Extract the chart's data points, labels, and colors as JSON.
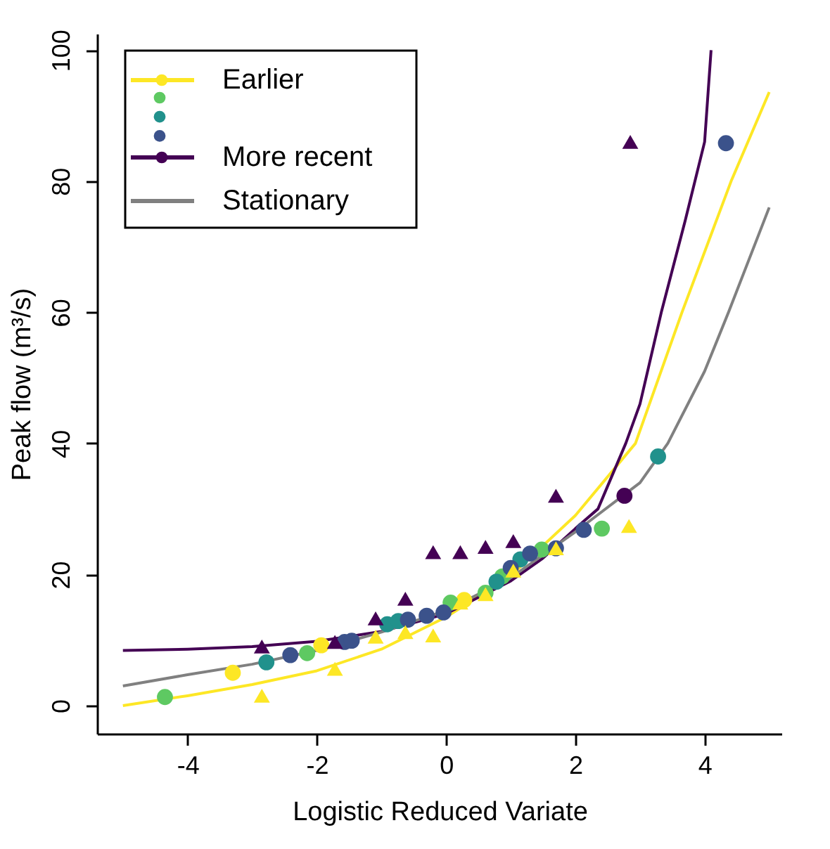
{
  "chart_data": {
    "type": "scatter",
    "xlabel": "Logistic Reduced Variate",
    "ylabel": "Peak flow (m³/s)",
    "xlim": [
      -5.4,
      5.2
    ],
    "ylim": [
      -4.3,
      102.5
    ],
    "xticks": [
      -4,
      -2,
      0,
      2,
      4
    ],
    "yticks": [
      0,
      20,
      40,
      60,
      80,
      100
    ],
    "grid": false,
    "legend": "top left",
    "series": [
      {
        "name": "Earlier",
        "type": "line",
        "color": "#fde725",
        "marker": "none",
        "x": [
          -5,
          -4,
          -3,
          -2,
          -1,
          0,
          1,
          2,
          2.93,
          3.65,
          4.41,
          5
        ],
        "values": [
          0,
          1.5,
          3.2,
          5.3,
          8.6,
          13.5,
          19.8,
          29,
          40,
          60,
          80,
          93.6
        ]
      },
      {
        "name": "More recent",
        "type": "line",
        "color": "#440154",
        "marker": "none",
        "x": [
          -5,
          -4,
          -3,
          -2,
          -1,
          0,
          1,
          1.5,
          2,
          2.35,
          2.78,
          3,
          3.33,
          3.7,
          4,
          4.1
        ],
        "values": [
          8.4,
          8.6,
          9.0,
          9.8,
          11.3,
          14,
          19,
          22.5,
          27,
          30,
          40,
          46,
          60,
          74,
          86,
          100
        ]
      },
      {
        "name": "Stationary",
        "type": "line",
        "color": "#808080",
        "marker": "none",
        "x": [
          -5,
          -4,
          -3,
          -2,
          -1,
          0,
          1,
          2,
          3,
          3.43,
          4,
          4.37,
          5
        ],
        "values": [
          3,
          4.7,
          6.3,
          8.4,
          11.2,
          14.5,
          19.5,
          26.5,
          34,
          40,
          51,
          60,
          76
        ]
      },
      {
        "marker": "circle",
        "color": "#fde725",
        "x": [
          -3.3,
          -1.93,
          0.28
        ],
        "values": [
          5.0,
          9.2,
          16.1
        ]
      },
      {
        "marker": "circle",
        "color": "#5ec962",
        "x": [
          -4.35,
          -2.15,
          0.07,
          0.61,
          0.87,
          1.48,
          2.41
        ],
        "values": [
          1.3,
          8.0,
          15.7,
          17.2,
          19.7,
          23.8,
          27.0
        ]
      },
      {
        "marker": "circle",
        "color": "#21918c",
        "x": [
          -2.78,
          -0.91,
          -0.74,
          0.78,
          1.15,
          3.28
        ],
        "values": [
          6.6,
          12.4,
          12.9,
          18.9,
          22.3,
          38.0
        ]
      },
      {
        "marker": "circle",
        "color": "#3b528b",
        "x": [
          -2.41,
          -1.57,
          -1.46,
          -0.59,
          -0.3,
          -0.04,
          1.0,
          1.3,
          1.7,
          2.13,
          4.33
        ],
        "values": [
          7.7,
          9.7,
          9.9,
          13.1,
          13.7,
          14.2,
          21,
          23.2,
          24.0,
          26.8,
          85.8
        ]
      },
      {
        "marker": "circle",
        "color": "#440154",
        "x": [
          2.76
        ],
        "values": [
          32.0
        ]
      },
      {
        "marker": "triangle",
        "color": "#fde725",
        "x": [
          -2.85,
          -1.72,
          -1.09,
          -0.63,
          -0.2,
          0.22,
          0.61,
          1.04,
          1.7,
          2.83
        ],
        "values": [
          1.5,
          5.6,
          10.5,
          11.2,
          10.7,
          15.7,
          17,
          20.6,
          24,
          27.4
        ]
      },
      {
        "marker": "triangle",
        "color": "#440154",
        "x": [
          -2.85,
          -1.72,
          -1.09,
          -0.63,
          -0.2,
          0.22,
          0.61,
          1.04,
          1.7,
          2.85
        ],
        "values": [
          9.0,
          9.7,
          13.3,
          16.3,
          23.4,
          23.4,
          24.2,
          25.1,
          32.0,
          86
        ]
      }
    ]
  }
}
